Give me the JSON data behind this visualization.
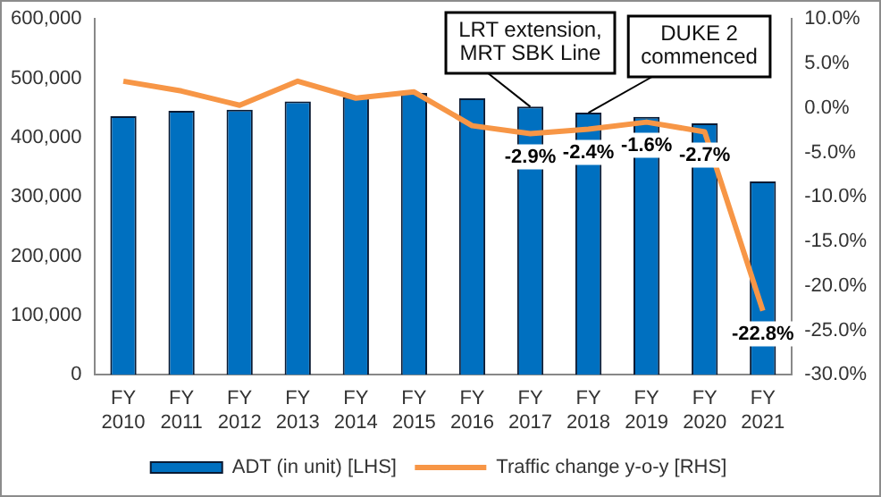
{
  "chart_data": {
    "type": "bar",
    "categories": [
      "FY 2010",
      "FY 2011",
      "FY 2012",
      "FY 2013",
      "FY 2014",
      "FY 2015",
      "FY 2016",
      "FY 2017",
      "FY 2018",
      "FY 2019",
      "FY 2020",
      "FY 2021"
    ],
    "series": [
      {
        "name": "ADT (in unit) [LHS]",
        "color": "#0070c0",
        "values": [
          436000,
          445000,
          447000,
          461000,
          468000,
          475000,
          466000,
          452000,
          442000,
          435000,
          424000,
          326000
        ]
      },
      {
        "name": "Traffic change y-o-y [RHS]",
        "type": "line",
        "axis": "y2",
        "color": "#f79646",
        "values": [
          3.0,
          1.9,
          0.3,
          3.0,
          1.1,
          1.8,
          -2.0,
          -2.9,
          -2.4,
          -1.6,
          -2.7,
          -22.8
        ],
        "value_labels": [
          null,
          null,
          null,
          null,
          null,
          null,
          null,
          "-2.9%",
          "-2.4%",
          "-1.6%",
          "-2.7%",
          "-22.8%"
        ]
      }
    ],
    "ylim": [
      0,
      600000
    ],
    "yticks": [
      {
        "value": 0,
        "label": "0"
      },
      {
        "value": 100000,
        "label": "100,000"
      },
      {
        "value": 200000,
        "label": "200,000"
      },
      {
        "value": 300000,
        "label": "300,000"
      },
      {
        "value": 400000,
        "label": "400,000"
      },
      {
        "value": 500000,
        "label": "500,000"
      },
      {
        "value": 600000,
        "label": "600,000"
      }
    ],
    "y2lim": [
      -30,
      10
    ],
    "y2ticks": [
      {
        "value": -30,
        "label": "-30.0%"
      },
      {
        "value": -25,
        "label": "-25.0%"
      },
      {
        "value": -20,
        "label": "-20.0%"
      },
      {
        "value": -15,
        "label": "-15.0%"
      },
      {
        "value": -10,
        "label": "-10.0%"
      },
      {
        "value": -5,
        "label": "-5.0%"
      },
      {
        "value": 0,
        "label": "0.0%"
      },
      {
        "value": 5,
        "label": "5.0%"
      },
      {
        "value": 10,
        "label": "10.0%"
      }
    ],
    "annotations": [
      {
        "text": "LRT extension,\nMRT SBK Line",
        "x": "FY 2017",
        "y": 452000
      },
      {
        "text": "DUKE 2\ncommenced",
        "x": "FY 2018",
        "y": 442000
      }
    ],
    "grid": false,
    "legend": "bottom",
    "marker": "none",
    "line_style": "solid"
  }
}
